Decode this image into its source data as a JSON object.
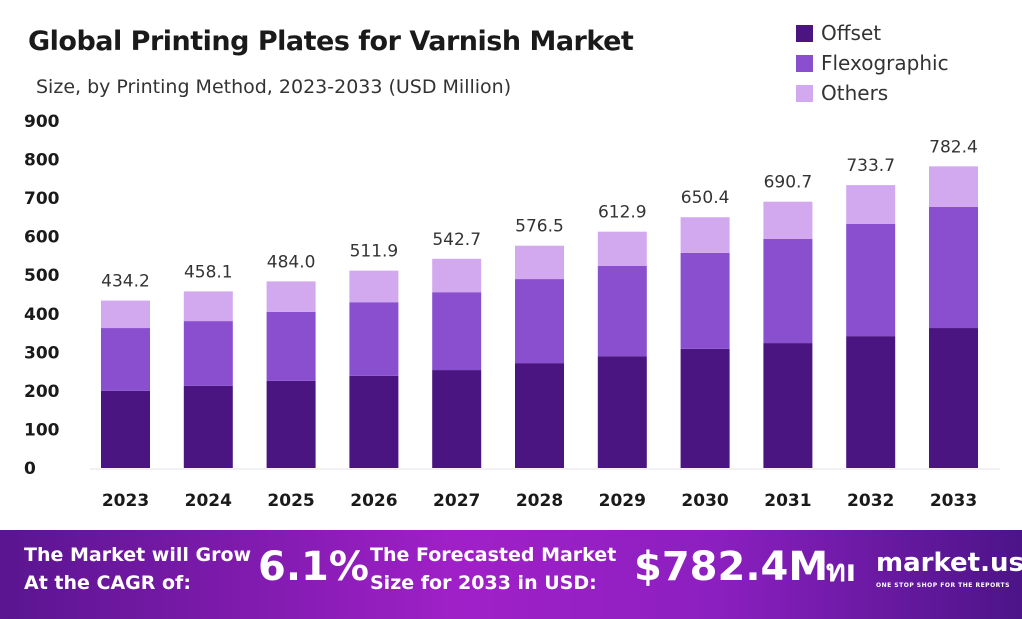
{
  "chart_data": {
    "type": "bar",
    "stacked": true,
    "title": "Global Printing Plates for Varnish Market",
    "subtitle": "Size, by Printing Method, 2023-2033 (USD Million)",
    "categories": [
      "2023",
      "2024",
      "2025",
      "2026",
      "2027",
      "2028",
      "2029",
      "2030",
      "2031",
      "2032",
      "2033"
    ],
    "series": [
      {
        "name": "Offset",
        "color": "#4a1580",
        "values": [
          200,
          213,
          226,
          239,
          254,
          272,
          290,
          309,
          324,
          342,
          363
        ]
      },
      {
        "name": "Flexographic",
        "color": "#8a4fcf",
        "values": [
          163,
          168,
          179,
          191,
          202,
          218,
          234,
          249,
          270,
          291,
          314
        ]
      },
      {
        "name": "Others",
        "color": "#d2a8ee",
        "values": [
          71.2,
          77.1,
          79.0,
          81.9,
          86.7,
          86.5,
          88.9,
          92.4,
          96.7,
          100.7,
          105.4
        ]
      }
    ],
    "totals": [
      "434.2",
      "458.1",
      "484.0",
      "511.9",
      "542.7",
      "576.5",
      "612.9",
      "650.4",
      "690.7",
      "733.7",
      "782.4"
    ],
    "yticks": [
      "0",
      "100",
      "200",
      "300",
      "400",
      "500",
      "600",
      "700",
      "800",
      "900"
    ],
    "ylim": [
      0,
      900
    ],
    "grid": false,
    "legend": "top-right"
  },
  "banner": {
    "cagr_label_1": "The Market will Grow",
    "cagr_label_2": "At the CAGR of:",
    "cagr_value": "6.1%",
    "forecast_label_1": "The Forecasted Market",
    "forecast_label_2": "Size for 2033 in USD:",
    "forecast_value": "$782.4M",
    "brand": "market.us",
    "tagline": "ONE STOP SHOP FOR THE REPORTS"
  }
}
